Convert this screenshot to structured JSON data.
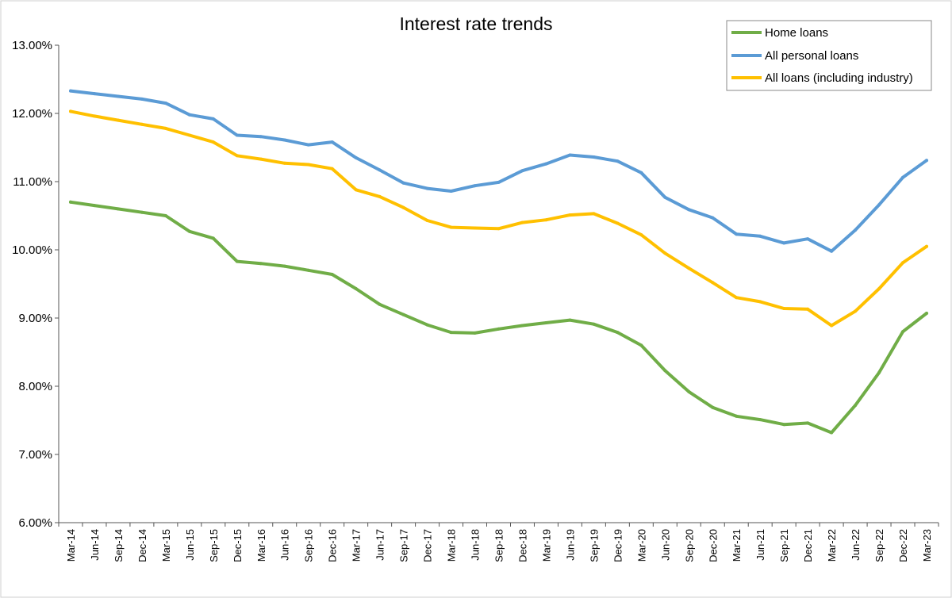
{
  "chart_data": {
    "type": "line",
    "title": "Interest rate trends",
    "xlabel": "",
    "ylabel": "",
    "ylim": [
      6,
      13
    ],
    "y_ticks": [
      "6.00%",
      "7.00%",
      "8.00%",
      "9.00%",
      "10.00%",
      "11.00%",
      "12.00%",
      "13.00%"
    ],
    "categories": [
      "Mar-14",
      "Jun-14",
      "Sep-14",
      "Dec-14",
      "Mar-15",
      "Jun-15",
      "Sep-15",
      "Dec-15",
      "Mar-16",
      "Jun-16",
      "Sep-16",
      "Dec-16",
      "Mar-17",
      "Jun-17",
      "Sep-17",
      "Dec-17",
      "Mar-18",
      "Jun-18",
      "Sep-18",
      "Dec-18",
      "Mar-19",
      "Jun-19",
      "Sep-19",
      "Dec-19",
      "Mar-20",
      "Jun-20",
      "Sep-20",
      "Dec-20",
      "Mar-21",
      "Jun-21",
      "Sep-21",
      "Dec-21",
      "Mar-22",
      "Jun-22",
      "Sep-22",
      "Dec-22",
      "Mar-23"
    ],
    "legend_position": "top-right",
    "grid": false,
    "series": [
      {
        "name": "Home loans",
        "color": "#70AD47",
        "values": [
          10.7,
          10.65,
          10.6,
          10.55,
          10.5,
          10.27,
          10.17,
          9.83,
          9.8,
          9.76,
          9.7,
          9.64,
          9.43,
          9.2,
          9.05,
          8.9,
          8.79,
          8.78,
          8.84,
          8.89,
          8.93,
          8.97,
          8.91,
          8.79,
          8.6,
          8.23,
          7.92,
          7.69,
          7.56,
          7.51,
          7.44,
          7.46,
          7.32,
          7.72,
          8.2,
          8.8,
          9.07
        ]
      },
      {
        "name": "All personal loans",
        "color": "#5B9BD5",
        "values": [
          12.33,
          12.29,
          12.25,
          12.21,
          12.15,
          11.98,
          11.92,
          11.68,
          11.66,
          11.61,
          11.54,
          11.58,
          11.35,
          11.17,
          10.98,
          10.9,
          10.86,
          10.94,
          10.99,
          11.16,
          11.26,
          11.39,
          11.36,
          11.3,
          11.13,
          10.77,
          10.59,
          10.47,
          10.23,
          10.2,
          10.1,
          10.16,
          9.98,
          10.29,
          10.66,
          11.06,
          11.31
        ]
      },
      {
        "name": "All loans (including industry)",
        "color": "#FFC000",
        "values": [
          12.03,
          11.96,
          11.9,
          11.84,
          11.78,
          11.68,
          11.58,
          11.38,
          11.33,
          11.27,
          11.25,
          11.19,
          10.88,
          10.78,
          10.62,
          10.43,
          10.33,
          10.32,
          10.31,
          10.4,
          10.44,
          10.51,
          10.53,
          10.39,
          10.22,
          9.95,
          9.73,
          9.52,
          9.3,
          9.24,
          9.14,
          9.13,
          8.89,
          9.1,
          9.43,
          9.81,
          10.05
        ]
      }
    ]
  }
}
